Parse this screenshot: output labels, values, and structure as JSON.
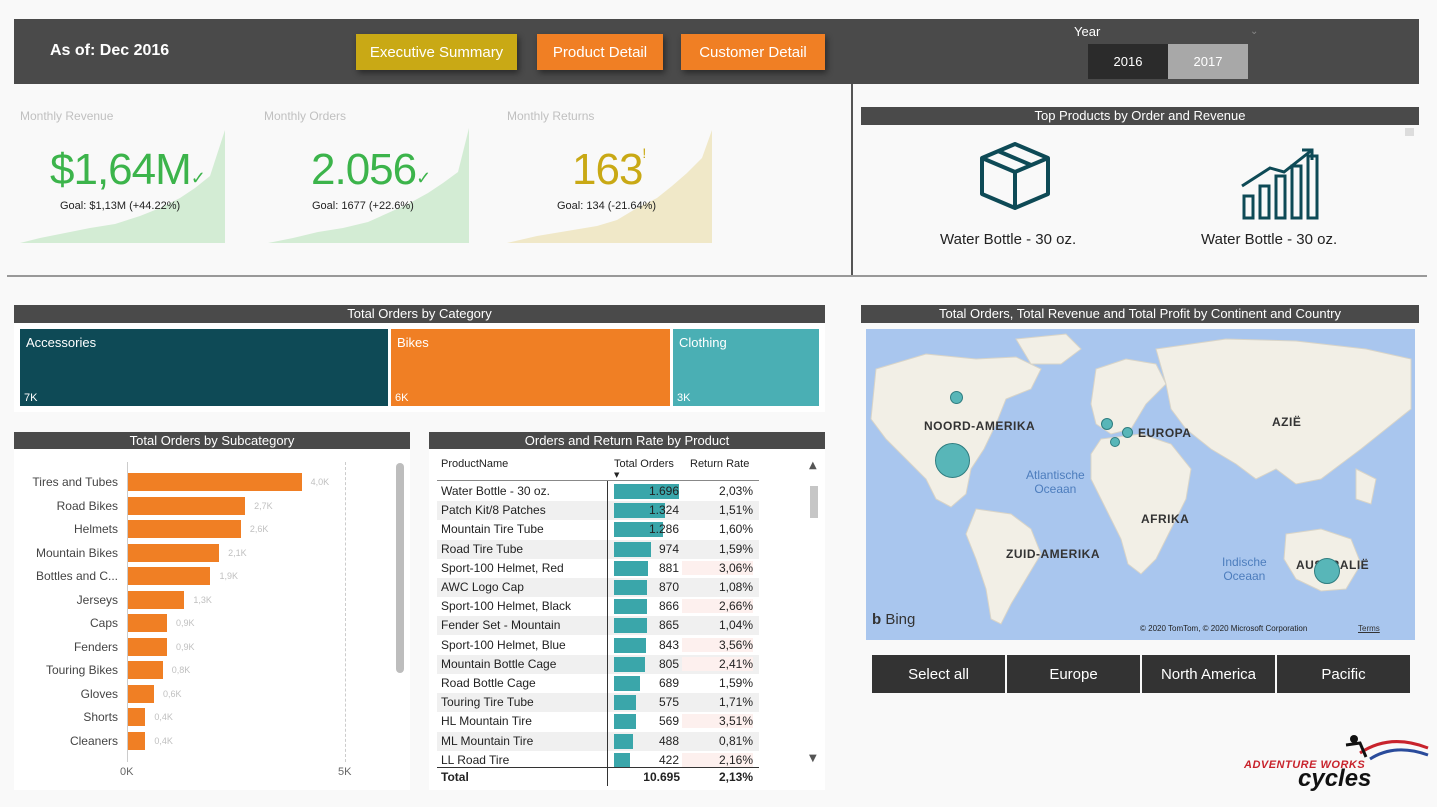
{
  "header": {
    "as_of": "As of: Dec 2016",
    "nav": [
      "Executive Summary",
      "Product Detail",
      "Customer Detail"
    ],
    "year_label": "Year",
    "years": [
      "2016",
      "2017"
    ],
    "selected_year": "2016"
  },
  "kpis": [
    {
      "title": "Monthly Revenue",
      "value": "$1,64M",
      "mark": "✓",
      "goal": "Goal: $1,13M (+44.22%)",
      "color": "#3cb44b",
      "area_color": "#d3ecd4"
    },
    {
      "title": "Monthly Orders",
      "value": "2.056",
      "mark": "✓",
      "goal": "Goal: 1677 (+22.6%)",
      "color": "#3cb44b",
      "area_color": "#d3ecd4"
    },
    {
      "title": "Monthly Returns",
      "value": "163",
      "mark": "!",
      "goal": "Goal: 134 (-21.64%)",
      "color": "#c9a915",
      "area_color": "#f0e8c8"
    }
  ],
  "top_products": {
    "title": "Top Products by Order and Revenue",
    "by_orders": "Water Bottle - 30 oz.",
    "by_revenue": "Water Bottle - 30 oz.",
    "icon_orders": "box-icon",
    "icon_revenue": "growth-chart-icon"
  },
  "category": {
    "title": "Total Orders by Category",
    "items": [
      {
        "name": "Accessories",
        "value": "7K",
        "color": "#0e4a56"
      },
      {
        "name": "Bikes",
        "value": "6K",
        "color": "#f07f24"
      },
      {
        "name": "Clothing",
        "value": "3K",
        "color": "#4aafb4"
      }
    ]
  },
  "subcategory": {
    "title": "Total Orders by Subcategory",
    "axis_ticks": [
      "0K",
      "5K"
    ]
  },
  "chart_data": {
    "type": "bar",
    "title": "Total Orders by Subcategory",
    "categories": [
      "Tires and Tubes",
      "Road Bikes",
      "Helmets",
      "Mountain Bikes",
      "Bottles and C...",
      "Jerseys",
      "Caps",
      "Fenders",
      "Touring Bikes",
      "Gloves",
      "Shorts",
      "Cleaners"
    ],
    "values": [
      4.0,
      2.7,
      2.6,
      2.1,
      1.9,
      1.3,
      0.9,
      0.9,
      0.8,
      0.6,
      0.4,
      0.4
    ],
    "data_labels": [
      "4,0K",
      "2,7K",
      "2,6K",
      "2,1K",
      "1,9K",
      "1,3K",
      "0,9K",
      "0,9K",
      "0,8K",
      "0,6K",
      "0,4K",
      "0,4K"
    ],
    "xlim": [
      0,
      5
    ],
    "orientation": "horizontal",
    "bar_color": "#f07f24"
  },
  "product_table": {
    "title": "Orders and Return Rate by Product",
    "columns": [
      "ProductName",
      "Total Orders",
      "Return Rate"
    ],
    "max_orders": 1696,
    "rows": [
      {
        "name": "Water Bottle - 30 oz.",
        "orders": 1696,
        "orders_label": "1.696",
        "rate": "2,03%",
        "highlight": false
      },
      {
        "name": "Patch Kit/8 Patches",
        "orders": 1324,
        "orders_label": "1.324",
        "rate": "1,51%",
        "highlight": false
      },
      {
        "name": "Mountain Tire Tube",
        "orders": 1286,
        "orders_label": "1.286",
        "rate": "1,60%",
        "highlight": false
      },
      {
        "name": "Road Tire Tube",
        "orders": 974,
        "orders_label": "974",
        "rate": "1,59%",
        "highlight": false
      },
      {
        "name": "Sport-100 Helmet, Red",
        "orders": 881,
        "orders_label": "881",
        "rate": "3,06%",
        "highlight": true
      },
      {
        "name": "AWC Logo Cap",
        "orders": 870,
        "orders_label": "870",
        "rate": "1,08%",
        "highlight": false
      },
      {
        "name": "Sport-100 Helmet, Black",
        "orders": 866,
        "orders_label": "866",
        "rate": "2,66%",
        "highlight": true
      },
      {
        "name": "Fender Set - Mountain",
        "orders": 865,
        "orders_label": "865",
        "rate": "1,04%",
        "highlight": false
      },
      {
        "name": "Sport-100 Helmet, Blue",
        "orders": 843,
        "orders_label": "843",
        "rate": "3,56%",
        "highlight": true
      },
      {
        "name": "Mountain Bottle Cage",
        "orders": 805,
        "orders_label": "805",
        "rate": "2,41%",
        "highlight": true
      },
      {
        "name": "Road Bottle Cage",
        "orders": 689,
        "orders_label": "689",
        "rate": "1,59%",
        "highlight": false
      },
      {
        "name": "Touring Tire Tube",
        "orders": 575,
        "orders_label": "575",
        "rate": "1,71%",
        "highlight": false
      },
      {
        "name": "HL Mountain Tire",
        "orders": 569,
        "orders_label": "569",
        "rate": "3,51%",
        "highlight": true
      },
      {
        "name": "ML Mountain Tire",
        "orders": 488,
        "orders_label": "488",
        "rate": "0,81%",
        "highlight": false
      },
      {
        "name": "LL Road Tire",
        "orders": 422,
        "orders_label": "422",
        "rate": "2,16%",
        "highlight": true
      }
    ],
    "total": {
      "label": "Total",
      "orders": "10.695",
      "rate": "2,13%"
    }
  },
  "map": {
    "title": "Total Orders, Total Revenue and Total Profit by Continent and Country",
    "labels": {
      "north_america": "NOORD-AMERIKA",
      "south_america": "ZUID-AMERIKA",
      "europe": "EUROPA",
      "africa": "AFRIKA",
      "asia": "AZIË",
      "australia": "AUSTRALIË"
    },
    "oceans": {
      "atlantic_1": "Atlantische",
      "atlantic_2": "Oceaan",
      "indian_1": "Indische",
      "indian_2": "Oceaan"
    },
    "bing": "Bing",
    "copyright": "© 2020 TomTom, © 2020 Microsoft Corporation",
    "terms": "Terms"
  },
  "continents": [
    "Select all",
    "Europe",
    "North America",
    "Pacific"
  ],
  "logo": {
    "line1": "ADVENTURE WORKS",
    "line2": "cycles"
  }
}
